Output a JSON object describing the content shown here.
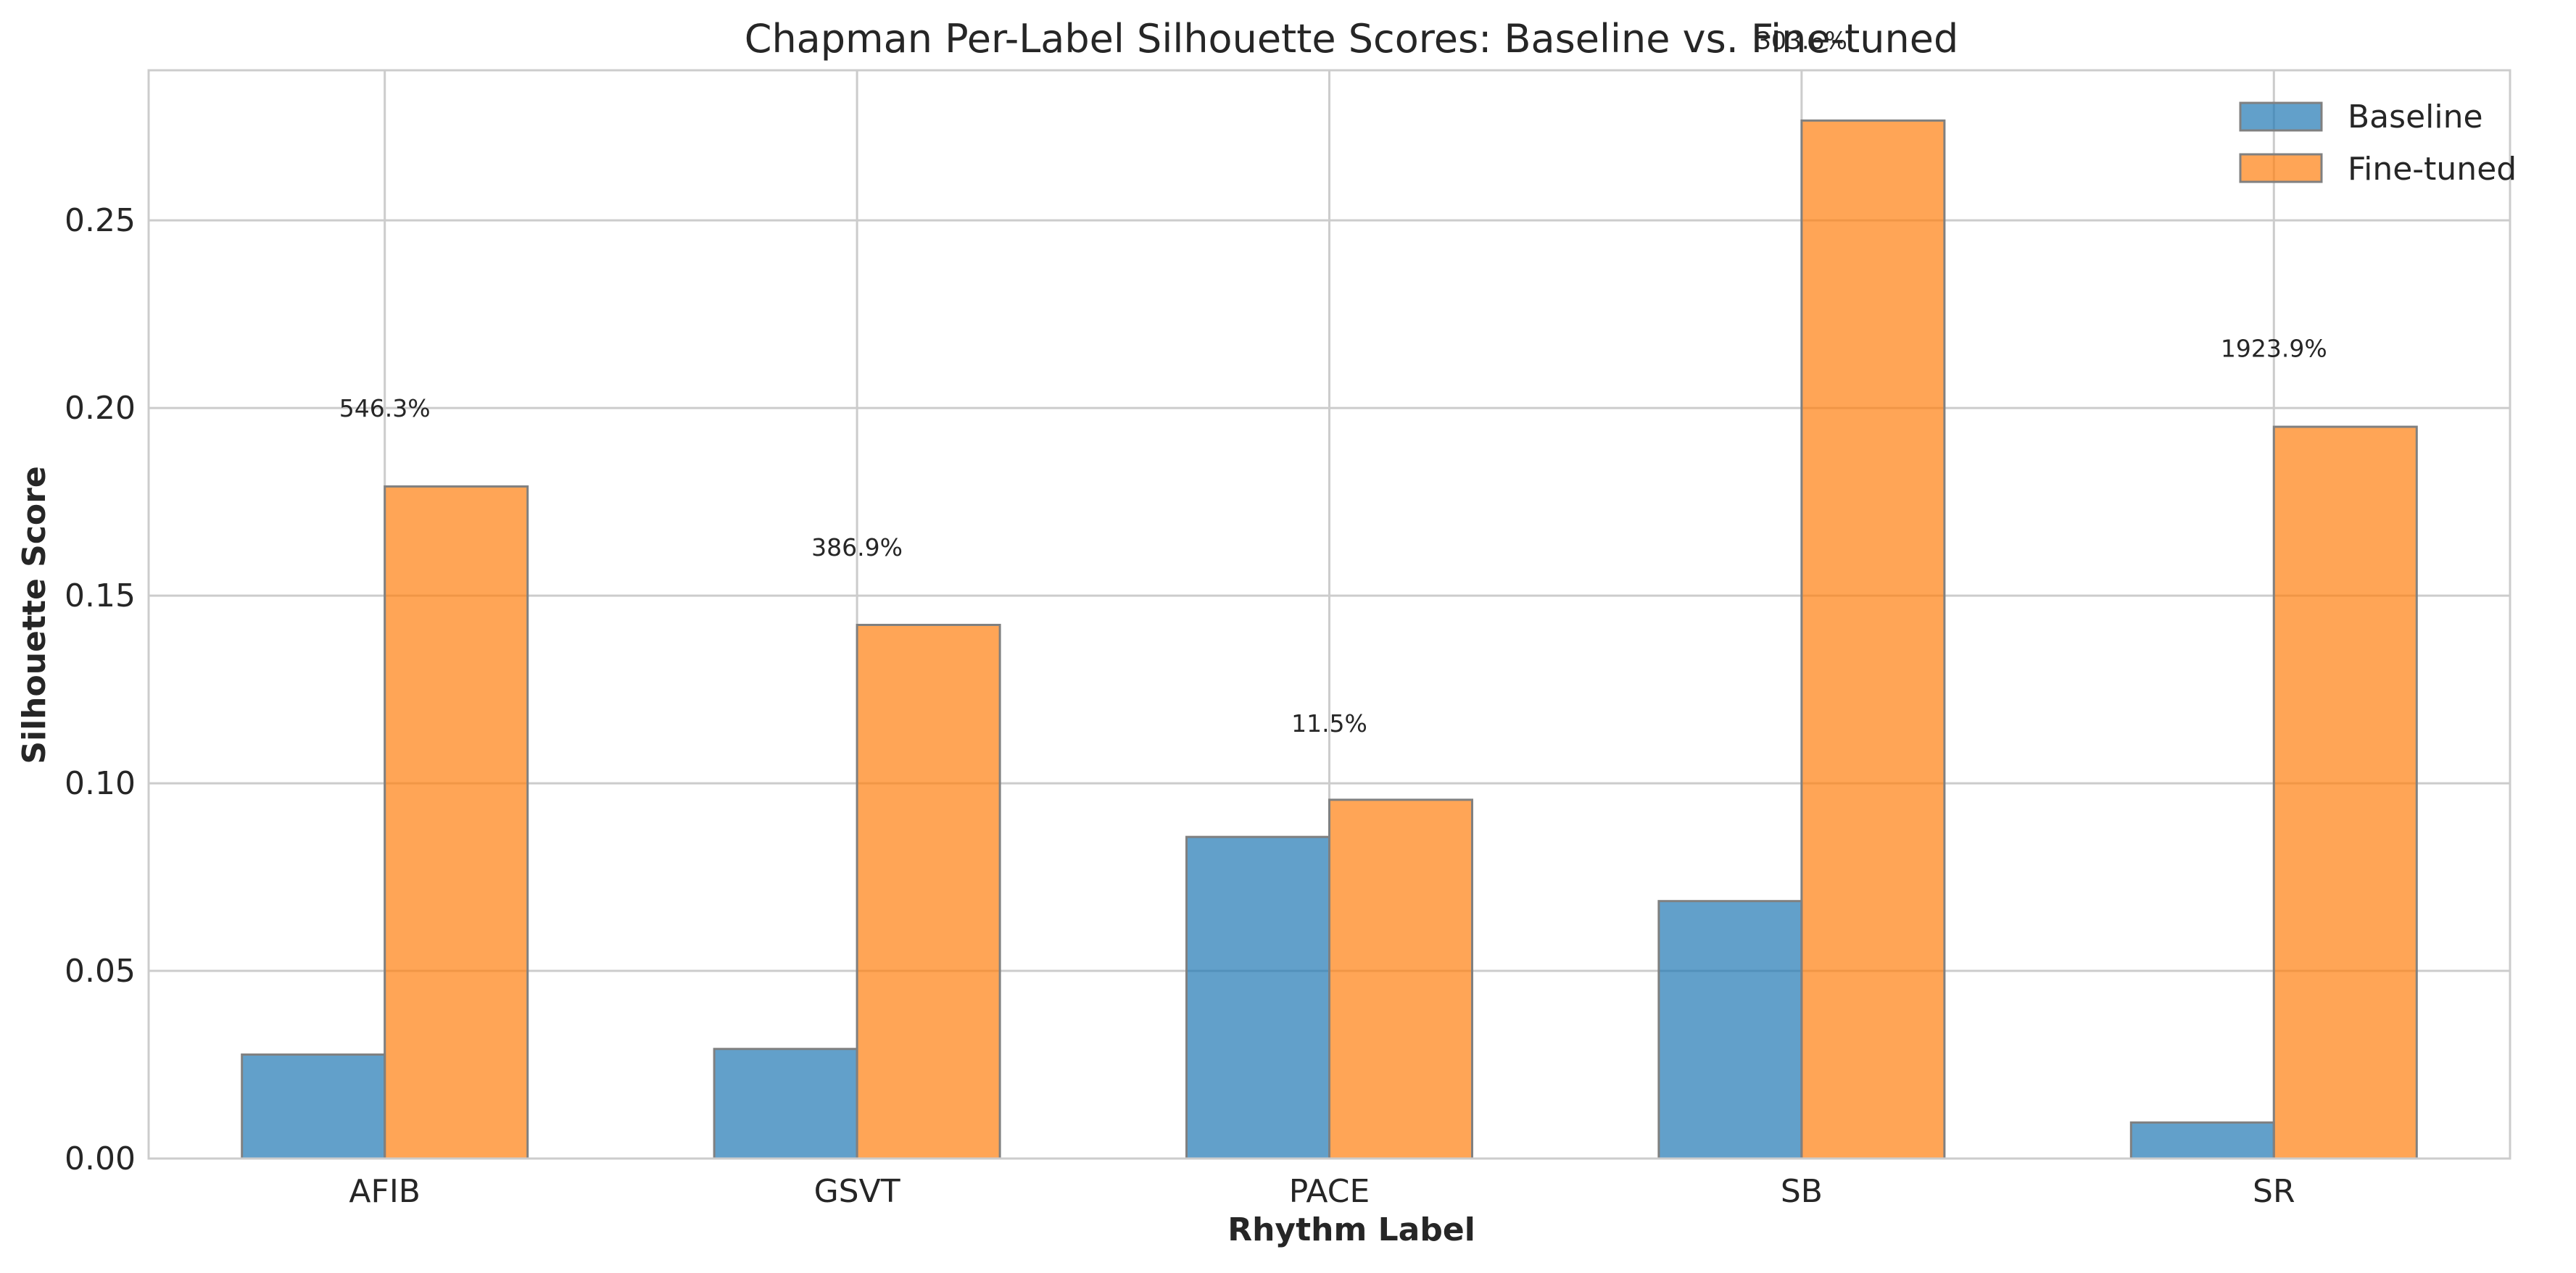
{
  "chart_data": {
    "type": "bar",
    "title": "Chapman Per-Label Silhouette Scores: Baseline vs. Fine-tuned",
    "xlabel": "Rhythm Label",
    "ylabel": "Silhouette Score",
    "categories": [
      "AFIB",
      "GSVT",
      "PACE",
      "SB",
      "SR"
    ],
    "series": [
      {
        "name": "Baseline",
        "color": "#1f77b4",
        "values": [
          0.0277,
          0.0292,
          0.0857,
          0.0686,
          0.0096
        ]
      },
      {
        "name": "Fine-tuned",
        "color": "#ff7f0e",
        "values": [
          0.1791,
          0.1422,
          0.0956,
          0.2766,
          0.195
        ]
      }
    ],
    "annotations": [
      "546.3%",
      "386.9%",
      "11.5%",
      "303.6%",
      "1923.9%"
    ],
    "annotation_y": [
      0.2,
      0.163,
      0.116,
      0.298,
      0.216
    ],
    "ylim": [
      0,
      0.29
    ],
    "yticks": [
      0.0,
      0.05,
      0.1,
      0.15,
      0.2,
      0.25
    ],
    "ytick_labels": [
      "0.00",
      "0.05",
      "0.10",
      "0.15",
      "0.20",
      "0.25"
    ],
    "grid": true,
    "legend_position": "top-right"
  }
}
